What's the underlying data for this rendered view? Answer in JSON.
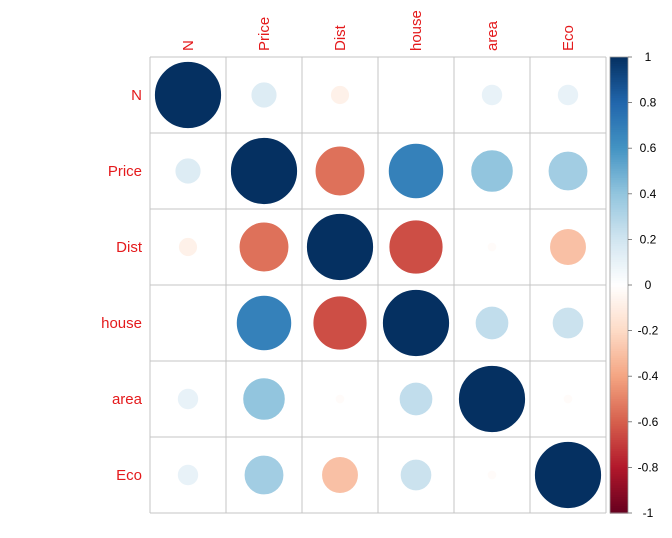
{
  "chart_data": {
    "type": "heatmap",
    "variables": [
      "N",
      "Price",
      "Dist",
      "house",
      "area",
      "Eco"
    ],
    "matrix": [
      [
        1.0,
        0.15,
        -0.08,
        0.0,
        0.1,
        0.1
      ],
      [
        0.15,
        1.0,
        -0.55,
        0.68,
        0.4,
        0.35
      ],
      [
        -0.08,
        -0.55,
        1.0,
        -0.65,
        -0.02,
        -0.3
      ],
      [
        0.0,
        0.68,
        -0.65,
        1.0,
        0.25,
        0.22
      ],
      [
        0.1,
        0.4,
        -0.02,
        0.25,
        1.0,
        -0.02
      ],
      [
        0.1,
        0.35,
        -0.3,
        0.22,
        -0.02,
        1.0
      ]
    ],
    "colorbar": {
      "range": [
        -1,
        1
      ],
      "ticks": [
        "1",
        "0.8",
        "0.6",
        "0.4",
        "0.2",
        "0",
        "-0.2",
        "-0.4",
        "-0.6",
        "-0.8",
        "-1"
      ]
    },
    "label_color": "#E41A1C",
    "grid": true
  }
}
